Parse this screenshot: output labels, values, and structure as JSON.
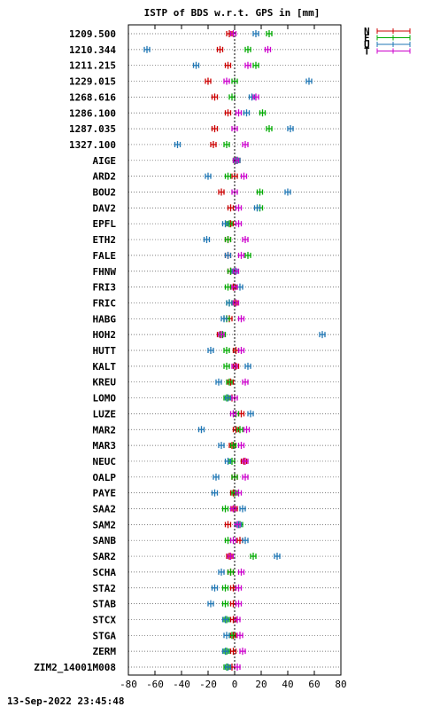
{
  "chart_data": {
    "type": "scatter",
    "title": "ISTP of BDS w.r.t. GPS in [mm]",
    "xlim": [
      -80,
      80
    ],
    "xticks": [
      "-80",
      "-60",
      "-40",
      "-20",
      "0",
      "20",
      "40",
      "60",
      "80"
    ],
    "grid": "horizontal dotted",
    "legend_position": "top-right",
    "categories": [
      "1209.500",
      "1210.344",
      "1211.215",
      "1229.015",
      "1268.616",
      "1286.100",
      "1287.035",
      "1327.100",
      "AIGE",
      "ARD2",
      "BOU2",
      "DAV2",
      "EPFL",
      "ETH2",
      "FALE",
      "FHNW",
      "FRI3",
      "FRIC",
      "HABG",
      "HOH2",
      "HUTT",
      "KALT",
      "KREU",
      "LOMO",
      "LUZE",
      "MAR2",
      "MAR3",
      "NEUC",
      "OALP",
      "PAYE",
      "SAA2",
      "SAM2",
      "SANB",
      "SAR2",
      "SCHA",
      "STA2",
      "STAB",
      "STCX",
      "STGA",
      "ZERM",
      "ZIM2_14001M008"
    ],
    "series": [
      {
        "name": "N",
        "color": "#cc0000",
        "values": [
          -4,
          -11,
          -5,
          -20,
          -15,
          -5,
          -15,
          -16,
          2,
          0,
          -10,
          -3,
          -3,
          -5,
          -5,
          -3,
          -1,
          0,
          -4,
          -11,
          1,
          1,
          -3,
          -2,
          5,
          1,
          -2,
          7,
          0,
          -1,
          0,
          -5,
          4,
          -4,
          -3,
          -1,
          -1,
          -1,
          -1,
          -1,
          -2
        ]
      },
      {
        "name": "E",
        "color": "#00aa00",
        "values": [
          26,
          10,
          16,
          0,
          -2,
          21,
          26,
          -6,
          1,
          -5,
          19,
          19,
          -4,
          -5,
          10,
          -3,
          -5,
          -4,
          -6,
          -9,
          -6,
          -6,
          -4,
          -6,
          1,
          4,
          -1,
          -2,
          0,
          0,
          -7,
          4,
          -5,
          14,
          -3,
          -7,
          -7,
          -6,
          -2,
          -6,
          -6
        ]
      },
      {
        "name": "U",
        "color": "#1f77b4",
        "values": [
          16,
          -66,
          -29,
          56,
          13,
          9,
          42,
          -43,
          2,
          -20,
          40,
          17,
          -7,
          -21,
          -5,
          0,
          4,
          -4,
          -8,
          66,
          -18,
          10,
          -12,
          -5,
          12,
          -25,
          -10,
          -5,
          -14,
          -15,
          6,
          3,
          8,
          32,
          -10,
          -15,
          -18,
          -7,
          -6,
          -7,
          -5
        ]
      },
      {
        "name": "T",
        "color": "#cc00cc",
        "values": [
          -1,
          25,
          10,
          -6,
          16,
          3,
          0,
          8,
          1,
          7,
          0,
          3,
          3,
          8,
          5,
          1,
          0,
          1,
          5,
          -10,
          5,
          0,
          8,
          0,
          -1,
          9,
          5,
          8,
          8,
          3,
          -1,
          2,
          -1,
          -3,
          5,
          3,
          3,
          2,
          4,
          6,
          2
        ]
      }
    ]
  },
  "footer": {
    "timestamp": "13-Sep-2022 23:45:48"
  }
}
